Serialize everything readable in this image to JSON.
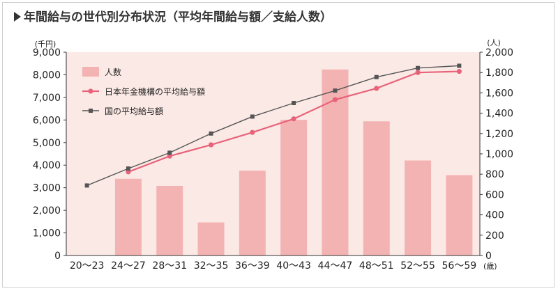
{
  "title": "年間給与の世代別分布状況（平均年間給与額／支給人数）",
  "chart_data": {
    "type": "bar+line",
    "categories": [
      "20〜23",
      "24〜27",
      "28〜31",
      "32〜35",
      "36〜39",
      "40〜43",
      "44〜47",
      "48〜51",
      "52〜55",
      "56〜59"
    ],
    "x_unit": "(歳)",
    "left_axis": {
      "unit": "(千円)",
      "ylim": [
        0,
        9000
      ],
      "ticks": [
        "0",
        "1,000",
        "2,000",
        "3,000",
        "4,000",
        "5,000",
        "6,000",
        "7,000",
        "8,000",
        "9,000"
      ]
    },
    "right_axis": {
      "unit": "(人)",
      "ylim": [
        0,
        2000
      ],
      "ticks": [
        "0",
        "200",
        "400",
        "600",
        "800",
        "1,000",
        "1,200",
        "1,400",
        "1,600",
        "1,800",
        "2,000"
      ]
    },
    "series": [
      {
        "name": "人数",
        "type": "bar",
        "axis": "right",
        "color": "#f4b3b3",
        "values": [
          null,
          755,
          685,
          325,
          835,
          1335,
          1830,
          1320,
          935,
          790
        ]
      },
      {
        "name": "日本年金機構の平均給与額",
        "type": "line",
        "axis": "left",
        "color": "#e8637a",
        "marker": "circle",
        "values": [
          null,
          3700,
          4400,
          4900,
          5450,
          6050,
          6900,
          7400,
          8100,
          8150
        ]
      },
      {
        "name": "国の平均給与額",
        "type": "line",
        "axis": "left",
        "color": "#555555",
        "marker": "square",
        "values": [
          3100,
          3850,
          4550,
          5400,
          6150,
          6750,
          7300,
          7900,
          8300,
          8400
        ]
      }
    ],
    "legend_position": "top-left",
    "plot_background": "#fbe9e5"
  }
}
